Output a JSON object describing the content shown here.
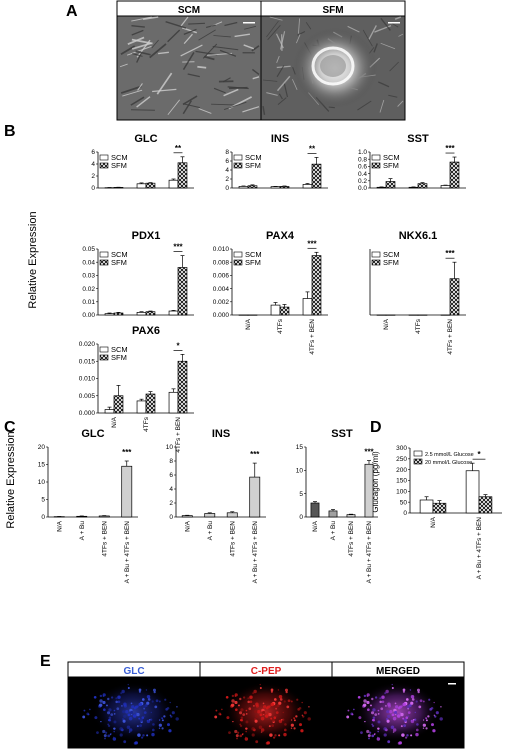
{
  "panel_labels": {
    "A": "A",
    "B": "B",
    "C": "C",
    "D": "D",
    "E": "E"
  },
  "panel_a": {
    "left_label": "SCM",
    "right_label": "SFM"
  },
  "panel_e": {
    "labels": [
      "GLC",
      "C-PEP",
      "MERGED"
    ],
    "label_colors": [
      "#3a5fd6",
      "#e02020",
      "#000000"
    ]
  },
  "shared": {
    "ylabel_b": "Relative Expression",
    "ylabel_c": "Relative Expression",
    "ylabel_d": "Glucagon (pg/ml)",
    "legend_b": [
      "SCM",
      "SFM"
    ],
    "legend_d": [
      "2.5 mmol/L Glucose",
      "20 mmol/L Glucose"
    ],
    "x_b": [
      "N/A",
      "4TFs",
      "4TFs + BEN"
    ],
    "x_c": [
      "N/A",
      "A + Bu",
      "4TFs + BEN",
      "A + Bu + 4TFs + BEN"
    ],
    "x_d": [
      "N/A",
      "A + Bu + 4TFs + BEN"
    ]
  },
  "chart_data": [
    {
      "id": "B-GLC",
      "type": "bar",
      "title": "GLC",
      "categories": [
        "N/A",
        "4TFs",
        "4TFs + BEN"
      ],
      "ylim": [
        0,
        6
      ],
      "yticks": [
        "0",
        "2",
        "4",
        "6"
      ],
      "series": [
        {
          "name": "SCM",
          "values": [
            0.05,
            0.7,
            1.3
          ],
          "err": [
            0.03,
            0.15,
            0.2
          ]
        },
        {
          "name": "SFM",
          "values": [
            0.1,
            0.8,
            4.2
          ],
          "err": [
            0.03,
            0.1,
            1.0
          ]
        }
      ],
      "sig": "**",
      "show_x": false
    },
    {
      "id": "B-INS",
      "type": "bar",
      "title": "INS",
      "categories": [
        "N/A",
        "4TFs",
        "4TFs + BEN"
      ],
      "ylim": [
        0,
        8
      ],
      "yticks": [
        "0",
        "2",
        "4",
        "6",
        "8"
      ],
      "series": [
        {
          "name": "SCM",
          "values": [
            0.35,
            0.3,
            0.8
          ],
          "err": [
            0.1,
            0.05,
            0.2
          ]
        },
        {
          "name": "SFM",
          "values": [
            0.5,
            0.35,
            5.3
          ],
          "err": [
            0.2,
            0.1,
            1.5
          ]
        }
      ],
      "sig": "**",
      "show_x": false
    },
    {
      "id": "B-SST",
      "type": "bar",
      "title": "SST",
      "categories": [
        "N/A",
        "4TFs",
        "4TFs + BEN"
      ],
      "ylim": [
        0,
        1.0
      ],
      "yticks": [
        "0.0",
        "0.2",
        "0.4",
        "0.6",
        "0.8",
        "1.0"
      ],
      "series": [
        {
          "name": "SCM",
          "values": [
            0.02,
            0.02,
            0.07
          ],
          "err": [
            0.01,
            0.01,
            0.01
          ]
        },
        {
          "name": "SFM",
          "values": [
            0.18,
            0.12,
            0.72
          ],
          "err": [
            0.08,
            0.03,
            0.14
          ]
        }
      ],
      "sig": "***",
      "show_x": false
    },
    {
      "id": "B-PDX1",
      "type": "bar",
      "title": "PDX1",
      "categories": [
        "N/A",
        "4TFs",
        "4TFs + BEN"
      ],
      "ylim": [
        0,
        0.05
      ],
      "yticks": [
        "0.00",
        "0.01",
        "0.02",
        "0.03",
        "0.04",
        "0.05"
      ],
      "series": [
        {
          "name": "SCM",
          "values": [
            0.001,
            0.002,
            0.003
          ],
          "err": [
            0.0005,
            0.0005,
            0.0005
          ]
        },
        {
          "name": "SFM",
          "values": [
            0.0015,
            0.0025,
            0.036
          ],
          "err": [
            0.0005,
            0.0005,
            0.009
          ]
        }
      ],
      "sig": "***",
      "show_x": false
    },
    {
      "id": "B-PAX4",
      "type": "bar",
      "title": "PAX4",
      "categories": [
        "N/A",
        "4TFs",
        "4TFs + BEN"
      ],
      "ylim": [
        0,
        0.01
      ],
      "yticks": [
        "0.000",
        "0.002",
        "0.004",
        "0.006",
        "0.008",
        "0.010"
      ],
      "series": [
        {
          "name": "SCM",
          "values": [
            0,
            0.0015,
            0.0025
          ],
          "err": [
            0,
            0.0004,
            0.001
          ]
        },
        {
          "name": "SFM",
          "values": [
            0,
            0.0012,
            0.009
          ],
          "err": [
            0,
            0.0004,
            0.0005
          ]
        }
      ],
      "sig": "***",
      "show_x": true
    },
    {
      "id": "B-NKX6.1",
      "type": "bar",
      "title": "NKX6.1",
      "categories": [
        "N/A",
        "4TFs",
        "4TFs + BEN"
      ],
      "ylim": [
        0,
        0.04
      ],
      "yticks": [],
      "series": [
        {
          "name": "SCM",
          "values": [
            0,
            0,
            0
          ],
          "err": [
            0,
            0,
            0
          ]
        },
        {
          "name": "SFM",
          "values": [
            0,
            0,
            0.022
          ],
          "err": [
            0,
            0,
            0.01
          ]
        }
      ],
      "sig": "***",
      "show_x": true
    },
    {
      "id": "B-PAX6",
      "type": "bar",
      "title": "PAX6",
      "categories": [
        "N/A",
        "4TFs",
        "4TFs + BEN"
      ],
      "ylim": [
        0,
        0.02
      ],
      "yticks": [
        "0.000",
        "0.005",
        "0.010",
        "0.015",
        "0.020"
      ],
      "series": [
        {
          "name": "SCM",
          "values": [
            0.001,
            0.0035,
            0.006
          ],
          "err": [
            0.0007,
            0.0005,
            0.001
          ]
        },
        {
          "name": "SFM",
          "values": [
            0.005,
            0.0055,
            0.015
          ],
          "err": [
            0.003,
            0.0007,
            0.002
          ]
        }
      ],
      "sig": "*",
      "show_x": true
    },
    {
      "id": "C-GLC",
      "type": "bar",
      "title": "GLC",
      "categories": [
        "N/A",
        "A + Bu",
        "4TFs + BEN",
        "A + Bu + 4TFs + BEN"
      ],
      "ylim": [
        0,
        20
      ],
      "yticks": [
        "0",
        "5",
        "10",
        "15",
        "20"
      ],
      "series": [
        {
          "name": "",
          "values": [
            0.1,
            0.2,
            0.3,
            14.5
          ],
          "err": [
            0.05,
            0.1,
            0.1,
            1.5
          ]
        }
      ],
      "sig": "***",
      "show_x": true,
      "fill": "#d0d0d0"
    },
    {
      "id": "C-INS",
      "type": "bar",
      "title": "INS",
      "categories": [
        "N/A",
        "A + Bu",
        "4TFs + BEN",
        "A + Bu + 4TFs + BEN"
      ],
      "ylim": [
        0,
        10
      ],
      "yticks": [
        "0",
        "2",
        "4",
        "6",
        "8",
        "10"
      ],
      "series": [
        {
          "name": "",
          "values": [
            0.2,
            0.5,
            0.6,
            5.7
          ],
          "err": [
            0.05,
            0.1,
            0.15,
            2.0
          ]
        }
      ],
      "sig": "***",
      "show_x": true,
      "fill": "#d0d0d0"
    },
    {
      "id": "C-SST",
      "type": "bar",
      "title": "SST",
      "categories": [
        "N/A",
        "A + Bu",
        "4TFs + BEN",
        "A + Bu + 4TFs + BEN"
      ],
      "ylim": [
        0,
        15
      ],
      "yticks": [
        "0",
        "5",
        "10",
        "15"
      ],
      "series": [
        {
          "name": "",
          "values": [
            3.0,
            1.3,
            0.5,
            11.3
          ],
          "err": [
            0.3,
            0.3,
            0.1,
            0.8
          ]
        }
      ],
      "sig": "***",
      "show_x": true,
      "fill": [
        "#555555",
        "#a0a0a0",
        "#d0d0d0",
        "#d0d0d0"
      ]
    },
    {
      "id": "D",
      "type": "bar",
      "title": "",
      "categories": [
        "N/A",
        "A + Bu + 4TFs + BEN"
      ],
      "ylim": [
        0,
        300
      ],
      "yticks": [
        "0",
        "50",
        "100",
        "150",
        "200",
        "250",
        "300"
      ],
      "series": [
        {
          "name": "2.5 mmol/L Glucose",
          "values": [
            60,
            195
          ],
          "err": [
            15,
            35
          ]
        },
        {
          "name": "20 mmol/L Glucose",
          "values": [
            45,
            75
          ],
          "err": [
            12,
            10
          ]
        }
      ],
      "sig": "*",
      "show_x": true
    }
  ]
}
